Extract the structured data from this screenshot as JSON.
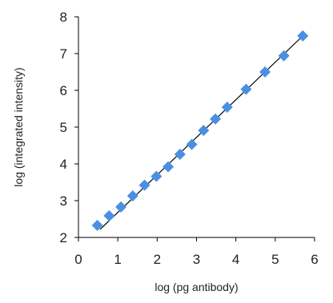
{
  "colors": {
    "marker": "#4a90e2",
    "trendline": "#000000",
    "axis": "#000000",
    "text": "#222222"
  },
  "chart_data": {
    "type": "scatter",
    "title": "",
    "xlabel": "log (pg antibody)",
    "ylabel": "log (integrated intensity)",
    "xlim": [
      0,
      6
    ],
    "ylim": [
      2,
      8
    ],
    "xticks": [
      "0",
      "1",
      "2",
      "3",
      "4",
      "5",
      "6"
    ],
    "yticks": [
      "2",
      "3",
      "4",
      "5",
      "6",
      "7",
      "8"
    ],
    "grid": false,
    "legend": "none",
    "marker_shape": "diamond",
    "trendline": {
      "type": "linear",
      "x": [
        0.55,
        5.72
      ],
      "y": [
        2.22,
        7.5
      ]
    },
    "series": [
      {
        "x": [
          0.48,
          0.78,
          1.08,
          1.38,
          1.68,
          1.98,
          2.28,
          2.58,
          2.88,
          3.18,
          3.48,
          3.78,
          4.26,
          4.74,
          5.22,
          5.7
        ],
        "y": [
          2.33,
          2.59,
          2.83,
          3.13,
          3.42,
          3.66,
          3.92,
          4.26,
          4.53,
          4.91,
          5.22,
          5.54,
          6.03,
          6.5,
          6.94,
          7.48
        ]
      }
    ]
  }
}
